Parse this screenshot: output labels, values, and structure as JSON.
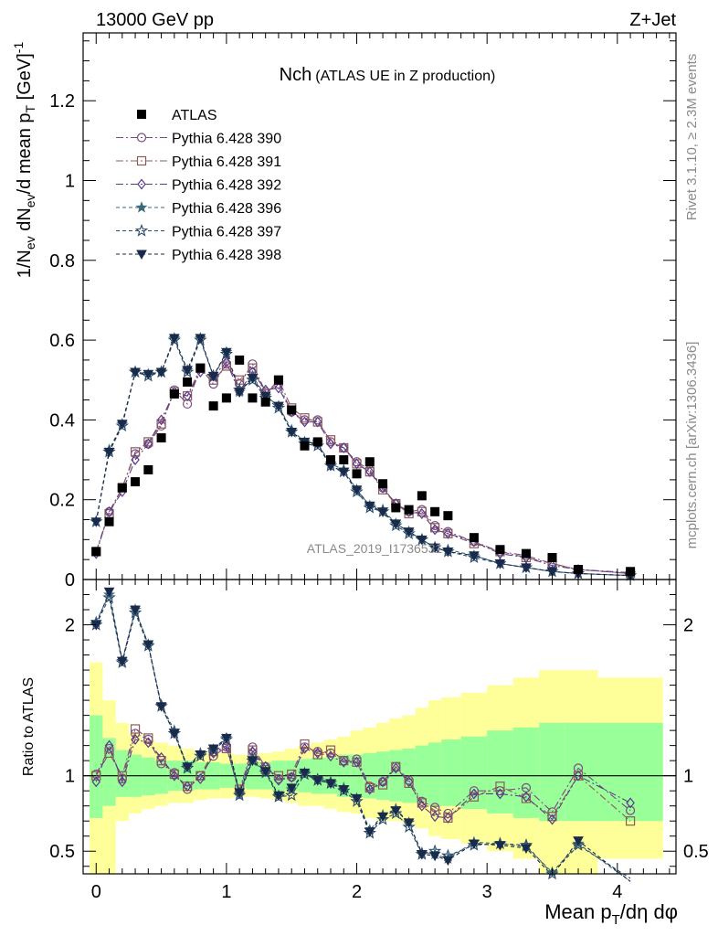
{
  "header": {
    "left": "13000 GeV pp",
    "right": "Z+Jet"
  },
  "side_text": {
    "rivet": "Rivet 3.1.10, ≥ 2.3M events",
    "mcplots": "mcplots.cern.ch [arXiv:1306.3436]"
  },
  "chart_data": {
    "type": "line",
    "title_main": "Nch",
    "title_sub": "(ATLAS UE in Z production)",
    "analysis_label": "ATLAS_2019_I1736531",
    "xlabel_html": "Mean p_T/dη dφ",
    "ylabel_top": "1/N_ev dN_ev/d mean p_T [GeV]^-1",
    "ylabel_ratio": "Ratio to ATLAS",
    "x_range": [
      -0.1,
      4.45
    ],
    "y_range_top": [
      0,
      1.37
    ],
    "y_range_ratio": [
      0.35,
      2.3
    ],
    "x_ticks": [
      "0",
      "1",
      "2",
      "3",
      "4"
    ],
    "y_ticks_top": [
      "0",
      "0.2",
      "0.4",
      "0.6",
      "0.8",
      "1",
      "1.2"
    ],
    "y_ticks_ratio": [
      "0.5",
      "1",
      "2"
    ],
    "ratio_ticks_right": [
      "0.5",
      "1",
      "2"
    ],
    "data": {
      "name": "ATLAS",
      "x": [
        0.0,
        0.1,
        0.2,
        0.3,
        0.4,
        0.5,
        0.6,
        0.7,
        0.8,
        0.9,
        1.0,
        1.1,
        1.2,
        1.3,
        1.4,
        1.5,
        1.6,
        1.7,
        1.8,
        1.9,
        2.0,
        2.1,
        2.2,
        2.3,
        2.4,
        2.5,
        2.6,
        2.7,
        2.9,
        3.1,
        3.3,
        3.5,
        3.7,
        4.1
      ],
      "y": [
        0.07,
        0.145,
        0.23,
        0.245,
        0.275,
        0.355,
        0.465,
        0.495,
        0.53,
        0.435,
        0.455,
        0.55,
        0.455,
        0.445,
        0.5,
        0.425,
        0.335,
        0.345,
        0.3,
        0.3,
        0.265,
        0.295,
        0.24,
        0.18,
        0.175,
        0.21,
        0.17,
        0.16,
        0.105,
        0.075,
        0.065,
        0.055,
        0.025,
        0.02
      ]
    },
    "band_edges": [
      -0.05,
      0.05,
      0.15,
      0.25,
      0.35,
      0.45,
      0.55,
      0.65,
      0.75,
      0.85,
      0.95,
      1.05,
      1.15,
      1.25,
      1.35,
      1.45,
      1.55,
      1.65,
      1.75,
      1.85,
      1.95,
      2.05,
      2.15,
      2.25,
      2.35,
      2.45,
      2.55,
      2.65,
      2.8,
      3.0,
      3.2,
      3.4,
      3.6,
      3.85,
      4.35
    ],
    "band_green": [
      [
        0.72,
        1.4
      ],
      [
        0.8,
        1.25
      ],
      [
        0.86,
        1.17
      ],
      [
        0.86,
        1.14
      ],
      [
        0.87,
        1.12
      ],
      [
        0.88,
        1.1
      ],
      [
        0.9,
        1.1
      ],
      [
        0.9,
        1.1
      ],
      [
        0.91,
        1.09
      ],
      [
        0.91,
        1.09
      ],
      [
        0.92,
        1.08
      ],
      [
        0.92,
        1.08
      ],
      [
        0.91,
        1.09
      ],
      [
        0.91,
        1.09
      ],
      [
        0.9,
        1.1
      ],
      [
        0.9,
        1.1
      ],
      [
        0.89,
        1.11
      ],
      [
        0.88,
        1.12
      ],
      [
        0.88,
        1.12
      ],
      [
        0.86,
        1.14
      ],
      [
        0.86,
        1.14
      ],
      [
        0.85,
        1.15
      ],
      [
        0.84,
        1.16
      ],
      [
        0.83,
        1.17
      ],
      [
        0.82,
        1.18
      ],
      [
        0.82,
        1.2
      ],
      [
        0.8,
        1.22
      ],
      [
        0.8,
        1.24
      ],
      [
        0.78,
        1.26
      ],
      [
        0.75,
        1.3
      ],
      [
        0.72,
        1.32
      ],
      [
        0.7,
        1.35
      ],
      [
        0.7,
        1.35
      ],
      [
        0.7,
        1.35
      ]
    ],
    "band_yellow": [
      [
        0.35,
        1.75
      ],
      [
        0.35,
        1.5
      ],
      [
        0.7,
        1.35
      ],
      [
        0.75,
        1.28
      ],
      [
        0.78,
        1.24
      ],
      [
        0.8,
        1.22
      ],
      [
        0.82,
        1.2
      ],
      [
        0.82,
        1.18
      ],
      [
        0.84,
        1.16
      ],
      [
        0.85,
        1.15
      ],
      [
        0.85,
        1.15
      ],
      [
        0.86,
        1.14
      ],
      [
        0.86,
        1.14
      ],
      [
        0.85,
        1.15
      ],
      [
        0.84,
        1.16
      ],
      [
        0.82,
        1.18
      ],
      [
        0.8,
        1.2
      ],
      [
        0.8,
        1.22
      ],
      [
        0.78,
        1.24
      ],
      [
        0.76,
        1.26
      ],
      [
        0.75,
        1.3
      ],
      [
        0.72,
        1.32
      ],
      [
        0.7,
        1.35
      ],
      [
        0.7,
        1.38
      ],
      [
        0.68,
        1.4
      ],
      [
        0.65,
        1.45
      ],
      [
        0.6,
        1.5
      ],
      [
        0.58,
        1.52
      ],
      [
        0.55,
        1.55
      ],
      [
        0.5,
        1.6
      ],
      [
        0.45,
        1.65
      ],
      [
        0.35,
        1.7
      ],
      [
        0.35,
        1.7
      ],
      [
        0.45,
        1.65
      ]
    ],
    "series": [
      {
        "name": "Pythia 6.428 390",
        "color": "#7a4a80",
        "marker": "circle",
        "dash": "8,3,2,3",
        "y": [
          0.07,
          0.17,
          0.23,
          0.315,
          0.34,
          0.385,
          0.475,
          0.44,
          0.53,
          0.49,
          0.54,
          0.49,
          0.54,
          0.47,
          0.49,
          0.42,
          0.4,
          0.4,
          0.345,
          0.33,
          0.295,
          0.275,
          0.23,
          0.19,
          0.17,
          0.175,
          0.135,
          0.12,
          0.095,
          0.07,
          0.06,
          0.04,
          0.025,
          0.015
        ],
        "ratio": [
          1.01,
          1.18,
          0.98,
          1.28,
          1.24,
          1.08,
          1.02,
          0.91,
          1.0,
          1.13,
          1.19,
          0.89,
          1.19,
          1.06,
          0.98,
          0.99,
          1.19,
          1.16,
          1.15,
          1.1,
          1.11,
          0.93,
          0.96,
          1.06,
          0.97,
          0.83,
          0.79,
          0.75,
          0.9,
          0.9,
          0.92,
          0.76,
          1.05,
          0.77
        ]
      },
      {
        "name": "Pythia 6.428 391",
        "color": "#8b5a5a",
        "marker": "square",
        "dash": "8,3,2,3",
        "y": [
          0.07,
          0.165,
          0.23,
          0.32,
          0.345,
          0.39,
          0.47,
          0.46,
          0.53,
          0.5,
          0.535,
          0.5,
          0.53,
          0.465,
          0.5,
          0.43,
          0.405,
          0.395,
          0.35,
          0.33,
          0.29,
          0.27,
          0.225,
          0.19,
          0.165,
          0.17,
          0.13,
          0.115,
          0.09,
          0.07,
          0.055,
          0.04,
          0.025,
          0.015
        ],
        "ratio": [
          1.0,
          1.15,
          1.0,
          1.31,
          1.25,
          1.1,
          1.01,
          0.93,
          1.0,
          1.16,
          1.18,
          0.91,
          1.17,
          1.04,
          1.0,
          1.01,
          1.21,
          1.14,
          1.17,
          1.1,
          1.09,
          0.92,
          0.94,
          1.06,
          0.95,
          0.82,
          0.77,
          0.72,
          0.86,
          0.93,
          0.85,
          0.73,
          1.0,
          0.7
        ]
      },
      {
        "name": "Pythia 6.428 392",
        "color": "#5a3a8a",
        "marker": "diamond",
        "dash": "8,3,2,3",
        "y": [
          0.065,
          0.17,
          0.22,
          0.3,
          0.34,
          0.4,
          0.47,
          0.46,
          0.52,
          0.51,
          0.545,
          0.47,
          0.52,
          0.475,
          0.48,
          0.42,
          0.395,
          0.395,
          0.34,
          0.33,
          0.29,
          0.27,
          0.23,
          0.19,
          0.17,
          0.165,
          0.125,
          0.115,
          0.095,
          0.065,
          0.055,
          0.035,
          0.025,
          0.017
        ],
        "ratio": [
          0.96,
          1.2,
          0.96,
          1.24,
          1.22,
          1.12,
          1.0,
          0.93,
          0.98,
          1.15,
          1.2,
          0.88,
          1.16,
          1.06,
          0.97,
          0.99,
          1.18,
          1.15,
          1.13,
          1.09,
          1.09,
          0.91,
          0.96,
          1.05,
          0.96,
          0.8,
          0.73,
          0.72,
          0.88,
          0.88,
          0.86,
          0.71,
          1.0,
          0.82
        ]
      },
      {
        "name": "Pythia 6.428 396",
        "color": "#3a6a7a",
        "marker": "star",
        "dash": "4,3",
        "y": [
          0.145,
          0.325,
          0.39,
          0.52,
          0.515,
          0.52,
          0.605,
          0.525,
          0.605,
          0.51,
          0.57,
          0.47,
          0.51,
          0.46,
          0.435,
          0.375,
          0.345,
          0.34,
          0.29,
          0.275,
          0.225,
          0.185,
          0.175,
          0.14,
          0.12,
          0.1,
          0.08,
          0.075,
          0.06,
          0.04,
          0.03,
          0.02,
          0.015,
          0.01
        ],
        "ratio": [
          2.02,
          2.2,
          1.76,
          2.1,
          1.87,
          1.47,
          1.3,
          1.06,
          1.15,
          1.17,
          1.25,
          0.88,
          1.12,
          1.03,
          0.87,
          0.91,
          1.02,
          0.98,
          0.96,
          0.92,
          0.85,
          0.64,
          0.74,
          0.78,
          0.69,
          0.49,
          0.48,
          0.45,
          0.56,
          0.55,
          0.53,
          0.36,
          0.55,
          0.3
        ]
      },
      {
        "name": "Pythia 6.428 397",
        "color": "#2a4a6a",
        "marker": "starOpen",
        "dash": "4,3",
        "y": [
          0.145,
          0.32,
          0.385,
          0.52,
          0.51,
          0.52,
          0.6,
          0.52,
          0.6,
          0.51,
          0.565,
          0.475,
          0.5,
          0.455,
          0.43,
          0.37,
          0.34,
          0.335,
          0.285,
          0.27,
          0.22,
          0.18,
          0.17,
          0.135,
          0.115,
          0.1,
          0.08,
          0.07,
          0.055,
          0.04,
          0.03,
          0.02,
          0.015,
          0.01
        ],
        "ratio": [
          2.0,
          2.18,
          1.75,
          2.08,
          1.86,
          1.46,
          1.28,
          1.05,
          1.13,
          1.17,
          1.24,
          0.87,
          1.1,
          1.02,
          0.86,
          0.87,
          1.01,
          0.97,
          0.95,
          0.9,
          0.83,
          0.62,
          0.71,
          0.75,
          0.66,
          0.48,
          0.5,
          0.47,
          0.54,
          0.55,
          0.54,
          0.35,
          0.54,
          0.32
        ]
      },
      {
        "name": "Pythia 6.428 398",
        "color": "#1a2a4a",
        "marker": "triangleDown",
        "dash": "4,3",
        "y": [
          0.145,
          0.32,
          0.39,
          0.52,
          0.515,
          0.52,
          0.605,
          0.525,
          0.605,
          0.51,
          0.57,
          0.47,
          0.505,
          0.46,
          0.435,
          0.37,
          0.345,
          0.34,
          0.285,
          0.27,
          0.225,
          0.185,
          0.17,
          0.14,
          0.12,
          0.1,
          0.08,
          0.07,
          0.06,
          0.04,
          0.03,
          0.02,
          0.015,
          0.01
        ],
        "ratio": [
          2.0,
          2.22,
          1.76,
          2.1,
          1.87,
          1.46,
          1.28,
          1.06,
          1.14,
          1.18,
          1.25,
          0.89,
          1.1,
          1.03,
          0.87,
          0.92,
          1.02,
          0.97,
          0.95,
          0.91,
          0.85,
          0.63,
          0.73,
          0.77,
          0.69,
          0.48,
          0.47,
          0.44,
          0.55,
          0.54,
          0.52,
          0.34,
          0.57,
          0.3
        ]
      }
    ]
  }
}
